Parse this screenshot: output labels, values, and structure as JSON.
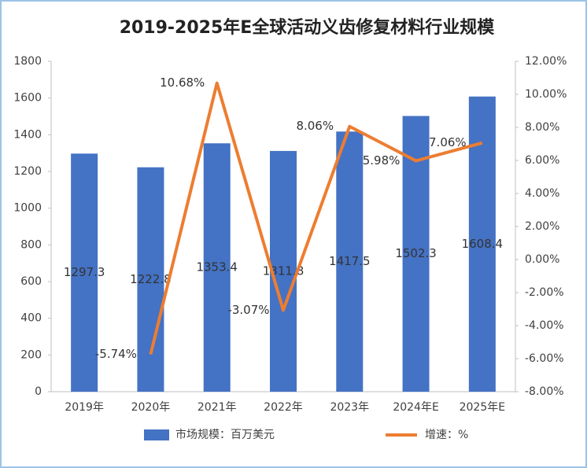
{
  "chart_data": {
    "type": "bar",
    "title": "2019-2025年E全球活动义齿修复材料行业规模",
    "categories": [
      "2019年",
      "2020年",
      "2021年",
      "2022年",
      "2023年",
      "2024年E",
      "2025年E"
    ],
    "series": [
      {
        "name": "市场规模：百万美元",
        "type": "bar",
        "color": "#4472c4",
        "values": [
          1297.3,
          1222.8,
          1353.4,
          1311.8,
          1417.5,
          1502.3,
          1608.4
        ]
      },
      {
        "name": "增速：%",
        "type": "line",
        "axis": "y2",
        "color": "#ed7d31",
        "values": [
          null,
          -5.74,
          10.68,
          -3.07,
          8.06,
          5.98,
          7.06
        ],
        "value_labels": [
          null,
          "-5.74%",
          "10.68%",
          "-3.07%",
          "8.06%",
          "5.98%",
          "7.06%"
        ]
      }
    ],
    "ylim": [
      0,
      1800
    ],
    "yticks": [
      0,
      200,
      400,
      600,
      800,
      1000,
      1200,
      1400,
      1600,
      1800
    ],
    "y2lim": [
      -8,
      12
    ],
    "y2ticks": [
      {
        "value": -8,
        "label": "-8.00%"
      },
      {
        "value": -6,
        "label": "-6.00%"
      },
      {
        "value": -4,
        "label": "-4.00%"
      },
      {
        "value": -2,
        "label": "-2.00%"
      },
      {
        "value": 0,
        "label": "0.00%"
      },
      {
        "value": 2,
        "label": "2.00%"
      },
      {
        "value": 4,
        "label": "4.00%"
      },
      {
        "value": 6,
        "label": "6.00%"
      },
      {
        "value": 8,
        "label": "8.00%"
      },
      {
        "value": 10,
        "label": "10.00%"
      },
      {
        "value": 12,
        "label": "12.00%"
      }
    ],
    "legend": "bottom"
  }
}
